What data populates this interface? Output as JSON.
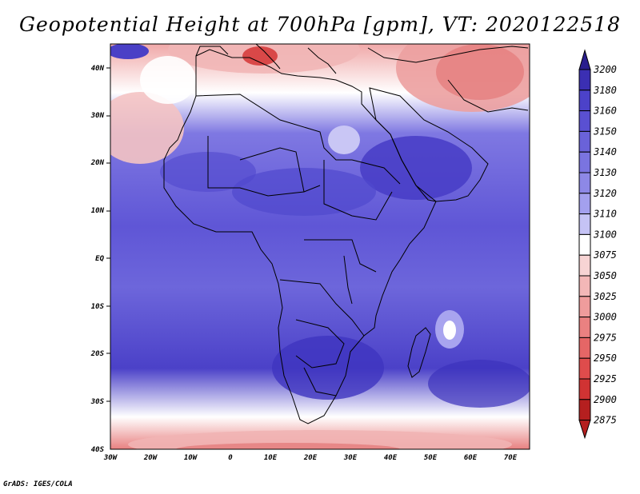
{
  "title": "Geopotential Height at 700hPa [gpm], VT: 2020122518",
  "credit": "GrADS: IGES/COLA",
  "map": {
    "lat_ticks": [
      "40N",
      "30N",
      "20N",
      "10N",
      "EQ",
      "10S",
      "20S",
      "30S",
      "40S"
    ],
    "lon_ticks": [
      "30W",
      "20W",
      "10W",
      "0",
      "10E",
      "20E",
      "30E",
      "40E",
      "50E",
      "60E",
      "70E"
    ],
    "lon_range": [
      -30,
      75
    ],
    "lat_range": [
      -40,
      45
    ]
  },
  "colorbar": {
    "levels": [
      "3200",
      "3180",
      "3160",
      "3150",
      "3140",
      "3130",
      "3120",
      "3110",
      "3100",
      "3075",
      "3050",
      "3025",
      "3000",
      "2975",
      "2950",
      "2925",
      "2900",
      "2875"
    ],
    "colors": [
      "#2a1e8e",
      "#3b2fb3",
      "#4c42c9",
      "#5a50d2",
      "#6a62d9",
      "#7a74e0",
      "#8d88e6",
      "#a3a0ee",
      "#c5c3f5",
      "#ffffff",
      "#f7d4d4",
      "#f3b7b7",
      "#ef9c9c",
      "#ea8181",
      "#e56666",
      "#df4c4c",
      "#d03333",
      "#b51f1f"
    ]
  }
}
